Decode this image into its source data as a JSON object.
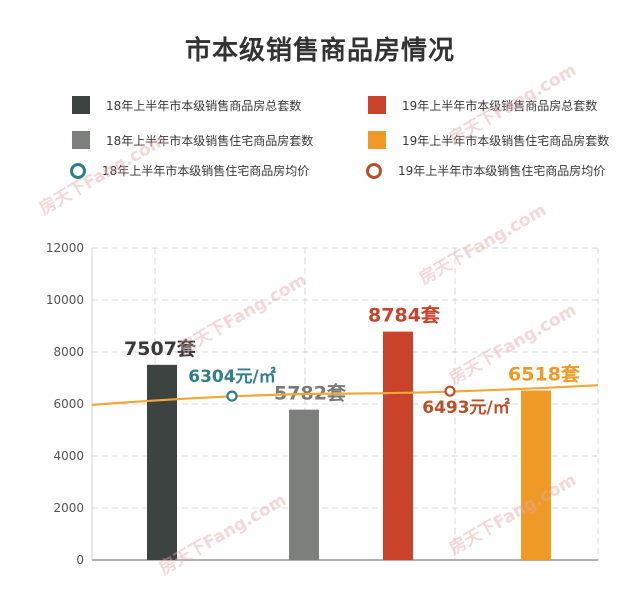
{
  "title": "市本级销售商品房情况",
  "legend": [
    {
      "label": "18年上半年市本级销售商品房总套数",
      "color": "#3c4341",
      "kind": "square"
    },
    {
      "label": "19年上半年市本级销售商品房总套数",
      "color": "#c9432b",
      "kind": "square"
    },
    {
      "label": "18年上半年市本级销售住宅商品房套数",
      "color": "#7d7f7c",
      "kind": "square"
    },
    {
      "label": "19年上半年市本级销售住宅商品房套数",
      "color": "#ef9a27",
      "kind": "square"
    },
    {
      "label": "18年上半年市本级销售住宅商品房均价",
      "color": "#2f7f8a",
      "kind": "ring"
    },
    {
      "label": "19年上半年市本级销售住宅商品房均价",
      "color": "#b9502a",
      "kind": "ring"
    }
  ],
  "watermark": "房天下Fang.com",
  "chart_data": {
    "type": "bar",
    "ylim": [
      0,
      12000
    ],
    "yticks": [
      "0",
      "2000",
      "4000",
      "6000",
      "8000",
      "10000",
      "12000"
    ],
    "grid": true,
    "bars": [
      {
        "value": 7507,
        "label": "7507套",
        "color": "#3c4341",
        "label_color": "#3a3a3a"
      },
      {
        "value": 5782,
        "label": "5782套",
        "color": "#7d7f7c",
        "label_color": "#7a7a7a"
      },
      {
        "value": 8784,
        "label": "8784套",
        "color": "#c9432b",
        "label_color": "#c9432b"
      },
      {
        "value": 6518,
        "label": "6518套",
        "color": "#ef9a27",
        "label_color": "#ef9a27"
      }
    ],
    "price_line": {
      "color": "#f0a838",
      "points": [
        {
          "value": 6304,
          "label": "6304元/㎡",
          "color": "#2f7f8a"
        },
        {
          "value": 6493,
          "label": "6493元/㎡",
          "color": "#b9502a"
        }
      ]
    }
  }
}
